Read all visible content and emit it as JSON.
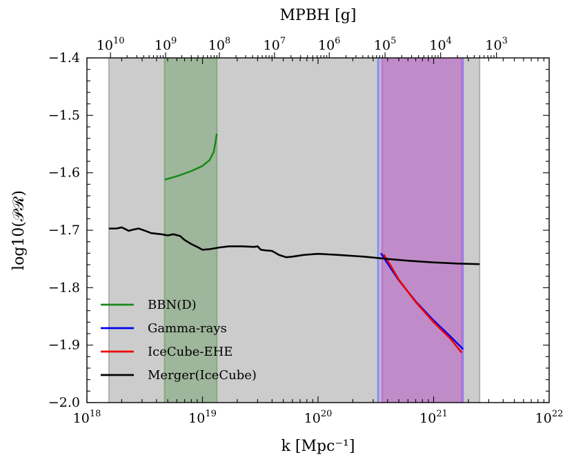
{
  "chart_data": {
    "type": "line",
    "xlabel": "k [Mpc⁻¹]",
    "ylabel": "log10(𝒫ℛ)",
    "top_xlabel": "MPBH [g]",
    "x_scale": "log",
    "xlim": [
      1e+18,
      1e+22
    ],
    "ylim": [
      -2.0,
      -1.4
    ],
    "x_ticks": [
      {
        "value": 1e+18,
        "base": "10",
        "exp": "18"
      },
      {
        "value": 1e+19,
        "base": "10",
        "exp": "19"
      },
      {
        "value": 1e+20,
        "base": "10",
        "exp": "20"
      },
      {
        "value": 1e+21,
        "base": "10",
        "exp": "21"
      },
      {
        "value": 1e+22,
        "base": "10",
        "exp": "22"
      }
    ],
    "y_ticks": [
      {
        "value": -1.4,
        "label": "−1.4"
      },
      {
        "value": -1.5,
        "label": "−1.5"
      },
      {
        "value": -1.6,
        "label": "−1.6"
      },
      {
        "value": -1.7,
        "label": "−1.7"
      },
      {
        "value": -1.8,
        "label": "−1.8"
      },
      {
        "value": -1.9,
        "label": "−1.9"
      },
      {
        "value": -2.0,
        "label": "−2.0"
      }
    ],
    "top_ticks": [
      {
        "k": 1.6e+18,
        "base": "10",
        "exp": "10"
      },
      {
        "k": 4.8e+18,
        "base": "10",
        "exp": "9"
      },
      {
        "k": 1.4e+19,
        "base": "10",
        "exp": "8"
      },
      {
        "k": 4.2e+19,
        "base": "10",
        "exp": "7"
      },
      {
        "k": 1.25e+20,
        "base": "10",
        "exp": "6"
      },
      {
        "k": 3.8e+20,
        "base": "10",
        "exp": "5"
      },
      {
        "k": 1.15e+21,
        "base": "10",
        "exp": "4"
      },
      {
        "k": 3.5e+21,
        "base": "10",
        "exp": "3"
      }
    ],
    "regions": [
      {
        "name": "merger-region",
        "color": "#aaaaaa",
        "opacity": 0.6,
        "x": [
          1.55e+18,
          2.5e+21
        ]
      },
      {
        "name": "bbn-region",
        "color": "#7fa67a",
        "opacity": 0.6,
        "x": [
          4.7e+18,
          1.33e+19
        ]
      },
      {
        "name": "gamma-region",
        "color": "#7a7aff",
        "opacity": 0.3,
        "x": [
          3.3e+20,
          1.8e+21
        ]
      },
      {
        "name": "icecube-region",
        "color": "#cc66b8",
        "opacity": 0.5,
        "x": [
          3.6e+20,
          1.75e+21
        ]
      }
    ],
    "series": [
      {
        "name": "BBN(D)",
        "color": "#1a8a1a",
        "points": [
          [
            4.7e+18,
            -1.612
          ],
          [
            6e+18,
            -1.606
          ],
          [
            8e+18,
            -1.597
          ],
          [
            1e+19,
            -1.588
          ],
          [
            1.15e+19,
            -1.578
          ],
          [
            1.25e+19,
            -1.564
          ],
          [
            1.3e+19,
            -1.545
          ],
          [
            1.33e+19,
            -1.532
          ]
        ]
      },
      {
        "name": "Gamma-rays",
        "color": "#0000ee",
        "points": [
          [
            3.5e+20,
            -1.74
          ],
          [
            4e+20,
            -1.758
          ],
          [
            5e+20,
            -1.787
          ],
          [
            7e+20,
            -1.824
          ],
          [
            1e+21,
            -1.857
          ],
          [
            1.4e+21,
            -1.885
          ],
          [
            1.8e+21,
            -1.907
          ]
        ]
      },
      {
        "name": "IceCube-EHE",
        "color": "#ee0000",
        "points": [
          [
            3.7e+20,
            -1.742
          ],
          [
            4.2e+20,
            -1.76
          ],
          [
            5e+20,
            -1.786
          ],
          [
            7e+20,
            -1.825
          ],
          [
            1e+21,
            -1.86
          ],
          [
            1.4e+21,
            -1.889
          ],
          [
            1.75e+21,
            -1.913
          ]
        ]
      },
      {
        "name": "Merger(IceCube)",
        "color": "#000000",
        "points": [
          [
            1.55e+18,
            -1.697
          ],
          [
            1.8e+18,
            -1.697
          ],
          [
            2e+18,
            -1.695
          ],
          [
            2.3e+18,
            -1.701
          ],
          [
            2.5e+18,
            -1.699
          ],
          [
            2.8e+18,
            -1.697
          ],
          [
            3.2e+18,
            -1.701
          ],
          [
            3.6e+18,
            -1.705
          ],
          [
            4.4e+18,
            -1.707
          ],
          [
            5e+18,
            -1.709
          ],
          [
            5.6e+18,
            -1.707
          ],
          [
            6.4e+18,
            -1.71
          ],
          [
            7e+18,
            -1.717
          ],
          [
            8e+18,
            -1.724
          ],
          [
            9e+18,
            -1.729
          ],
          [
            1e+19,
            -1.734
          ],
          [
            1.15e+19,
            -1.733
          ],
          [
            1.4e+19,
            -1.73
          ],
          [
            1.7e+19,
            -1.728
          ],
          [
            2.2e+19,
            -1.728
          ],
          [
            2.8e+19,
            -1.729
          ],
          [
            3e+19,
            -1.728
          ],
          [
            3.2e+19,
            -1.734
          ],
          [
            3.5e+19,
            -1.735
          ],
          [
            4e+19,
            -1.736
          ],
          [
            4.6e+19,
            -1.743
          ],
          [
            5.3e+19,
            -1.747
          ],
          [
            6e+19,
            -1.746
          ],
          [
            7.5e+19,
            -1.743
          ],
          [
            1e+20,
            -1.741
          ],
          [
            1.5e+20,
            -1.743
          ],
          [
            2.5e+20,
            -1.746
          ],
          [
            4e+20,
            -1.75
          ],
          [
            6e+20,
            -1.753
          ],
          [
            1e+21,
            -1.756
          ],
          [
            1.6e+21,
            -1.758
          ],
          [
            2.5e+21,
            -1.759
          ]
        ]
      }
    ],
    "legend": {
      "placement": "lower-left",
      "entries": [
        "BBN(D)",
        "Gamma-rays",
        "IceCube-EHE",
        "Merger(IceCube)"
      ]
    }
  }
}
